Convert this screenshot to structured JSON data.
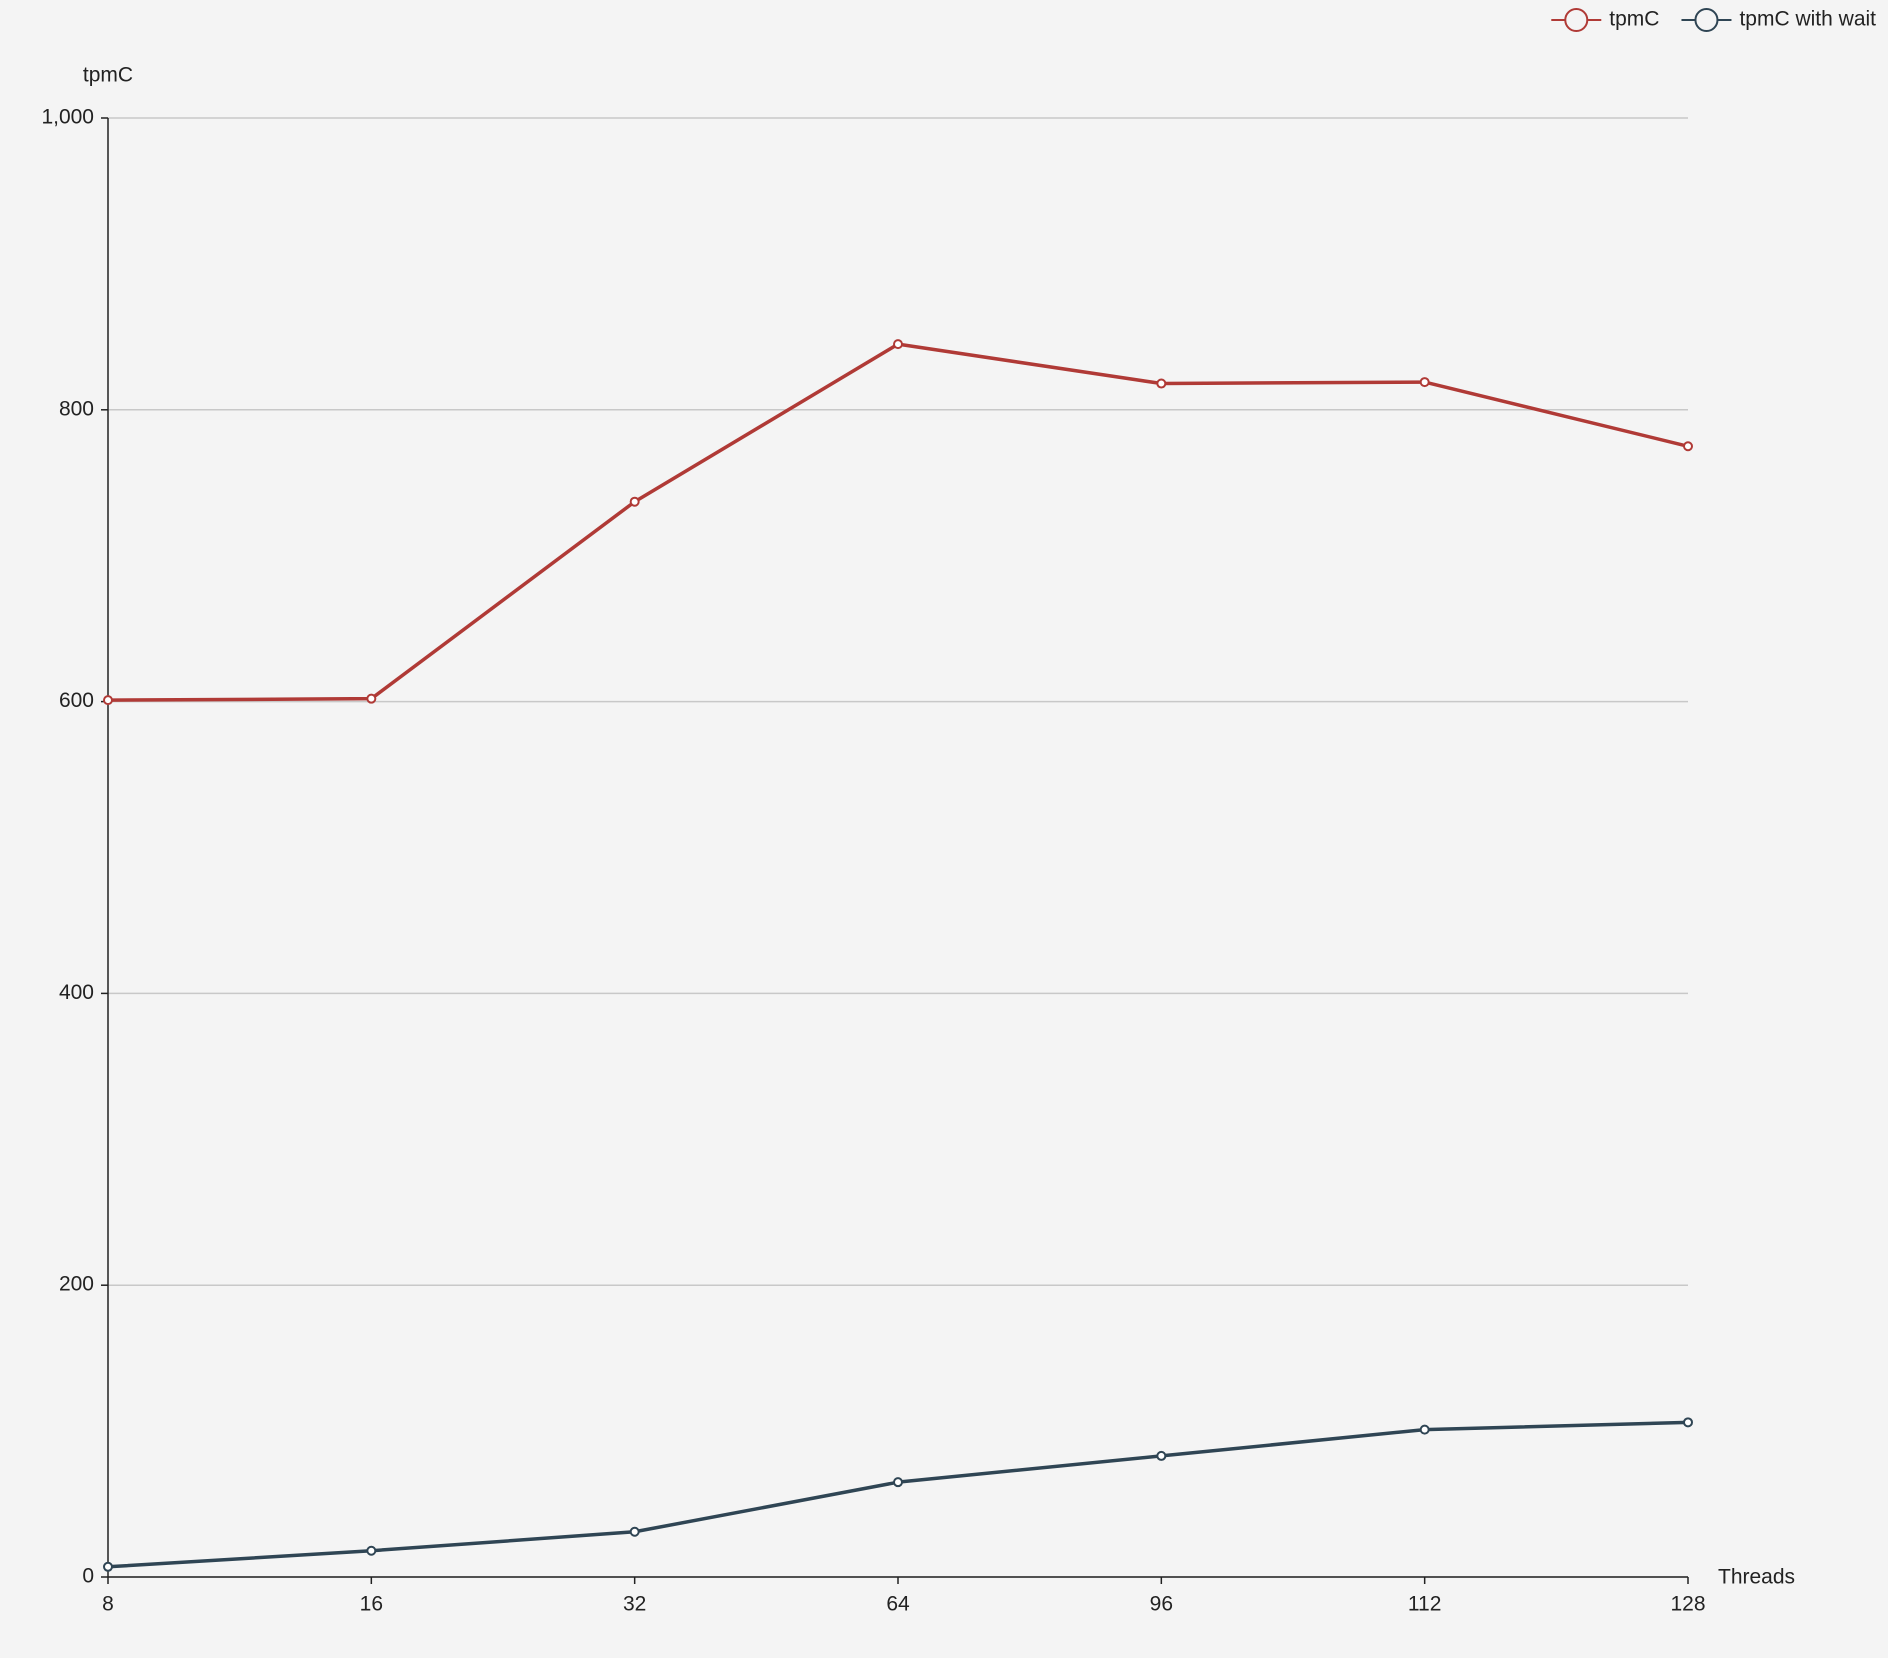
{
  "chart_data": {
    "type": "line",
    "x_label": "Threads",
    "y_label": "tpmC",
    "categories": [
      "8",
      "16",
      "32",
      "64",
      "96",
      "112",
      "128"
    ],
    "series": [
      {
        "name": "tpmC",
        "color": "#b03a36",
        "values": [
          601,
          602,
          737,
          845,
          818,
          819,
          775
        ]
      },
      {
        "name": "tpmC with wait",
        "color": "#2f4554",
        "values": [
          7,
          18,
          31,
          65,
          83,
          101,
          106
        ]
      }
    ],
    "ylim": [
      0,
      1000
    ],
    "yticks": [
      0,
      200,
      400,
      600,
      800,
      {
        "value": 1000,
        "label": "1,000"
      }
    ],
    "grid": true,
    "legend": "top-right"
  }
}
